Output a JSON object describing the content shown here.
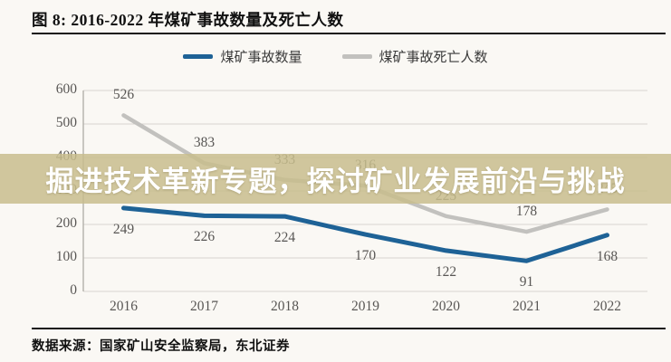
{
  "figure": {
    "title": "图 8: 2016-2022 年煤矿事故数量及死亡人数",
    "source": "数据来源：国家矿山安全监察局，东北证券"
  },
  "overlay": {
    "text": "掘进技术革新专题，探讨矿业发展前沿与挑战",
    "background_color": "#c8bd8d",
    "background_opacity": 0.85,
    "text_color": "#ffffff"
  },
  "chart_data": {
    "type": "line",
    "title": "2016-2022 年煤矿事故数量及死亡人数",
    "categories": [
      "2016",
      "2017",
      "2018",
      "2019",
      "2020",
      "2021",
      "2022"
    ],
    "series": [
      {
        "name": "煤矿事故数量",
        "color": "#1e6296",
        "stroke_width": 5,
        "label_position": "below",
        "values": [
          249,
          226,
          224,
          170,
          122,
          91,
          168
        ]
      },
      {
        "name": "煤矿事故死亡人数",
        "color": "#c2c1be",
        "stroke_width": 4.5,
        "label_position": "above",
        "values": [
          526,
          383,
          333,
          316,
          225,
          178,
          245
        ]
      }
    ],
    "ylim": [
      0,
      600
    ],
    "ytick_step": 100,
    "yticks": [
      0,
      100,
      200,
      300,
      400,
      500,
      600
    ],
    "grid": true,
    "legend_position": "top-center",
    "colors": {
      "gridline": "#d8d5d0",
      "axis": "#b3b0ab",
      "tick_text": "#585654"
    }
  }
}
